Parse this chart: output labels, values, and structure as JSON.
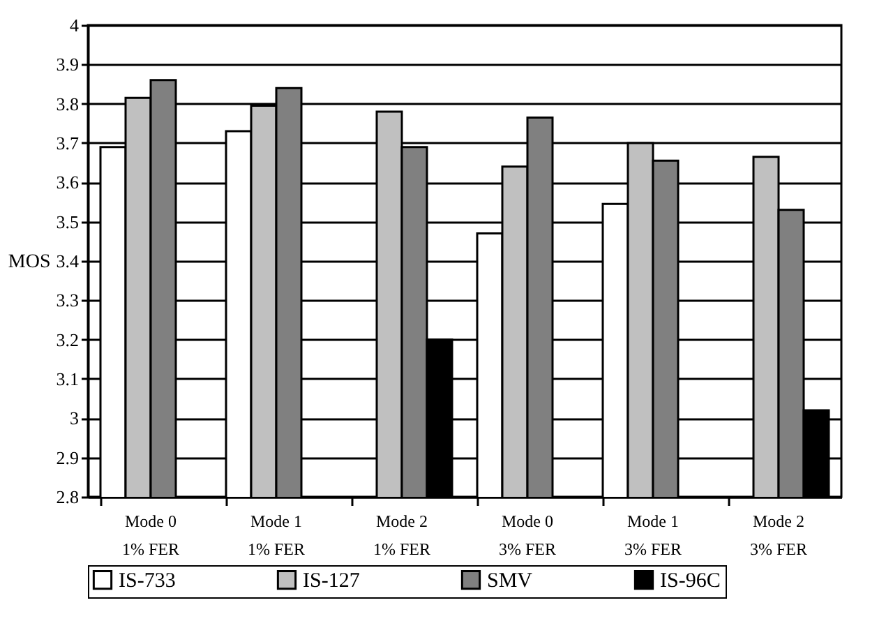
{
  "chart_data": {
    "type": "bar",
    "ylabel": "MOS",
    "categories": [
      "Mode 0\n1% FER",
      "Mode 1\n1% FER",
      "Mode 2\n1% FER",
      "Mode 0\n3% FER",
      "Mode 1\n3% FER",
      "Mode 2\n3% FER"
    ],
    "series": [
      {
        "name": "IS-733",
        "color": "#ffffff",
        "values": [
          3.69,
          3.73,
          null,
          3.47,
          3.545,
          null
        ]
      },
      {
        "name": "IS-127",
        "color": "#c0c0c0",
        "values": [
          3.815,
          3.795,
          3.78,
          3.64,
          3.7,
          3.665
        ]
      },
      {
        "name": "SMV",
        "color": "#808080",
        "values": [
          3.86,
          3.84,
          3.69,
          3.765,
          3.655,
          3.53
        ]
      },
      {
        "name": "IS-96C",
        "color": "#000000",
        "values": [
          null,
          null,
          3.2,
          null,
          null,
          3.02
        ]
      }
    ],
    "ylim": [
      2.8,
      4
    ],
    "yticks": [
      2.8,
      2.9,
      3,
      3.1,
      3.2,
      3.3,
      3.4,
      3.5,
      3.6,
      3.7,
      3.8,
      3.9,
      4
    ],
    "grid": "y",
    "legend": "bottom"
  }
}
